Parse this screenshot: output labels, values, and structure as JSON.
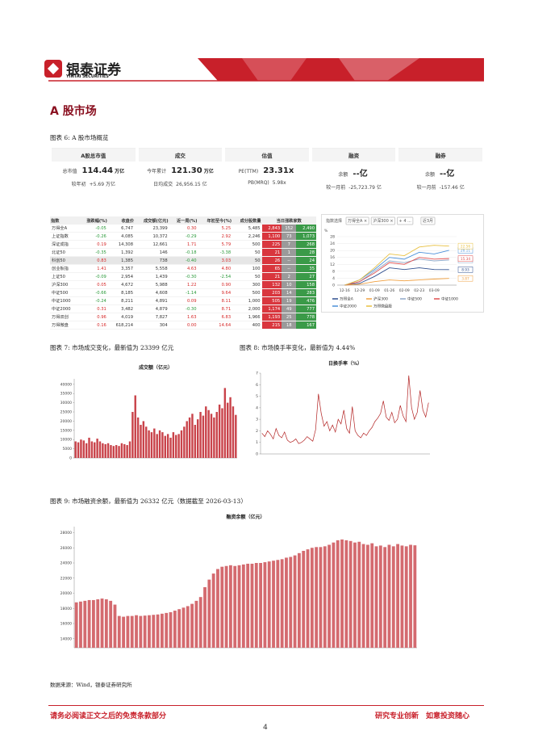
{
  "header": {
    "logo_cn": "银泰证券",
    "logo_en": "YINTAI SECURITIES"
  },
  "section_title": "A 股市场",
  "figure6": {
    "caption": "图表 6: A 股市场概览",
    "cards": [
      {
        "title": "A股总市值",
        "rows": [
          [
            "总市值",
            "114.44",
            "万亿"
          ],
          [
            "较年初",
            "+5.69 万亿"
          ]
        ]
      },
      {
        "title": "成交",
        "rows": [
          [
            "今年累计",
            "121.30",
            "万亿"
          ],
          [
            "日均成交",
            "26,956.15 亿"
          ]
        ]
      },
      {
        "title": "估值",
        "rows": [
          [
            "PE(TTM)",
            "23.31x"
          ],
          [
            "PB(MRQ)",
            "5.98x"
          ]
        ]
      },
      {
        "title": "融资",
        "rows": [
          [
            "余额",
            "--亿"
          ],
          [
            "较一月前",
            "-25,723.79 亿"
          ]
        ]
      },
      {
        "title": "融券",
        "rows": [
          [
            "余额",
            "--亿"
          ],
          [
            "较一月前",
            "-157.46 亿"
          ]
        ]
      }
    ],
    "table": {
      "header": [
        "指数",
        "涨跌幅(%)",
        "收盘价",
        "成交额(亿元)",
        "近一周(%)",
        "年初至今(%)",
        "成分股数量",
        "当日涨跌家数"
      ],
      "rows": [
        [
          "万得全A",
          "-0.05",
          "6,747",
          "23,399",
          "0.30",
          "5.25",
          "5,485",
          "2,843",
          "152",
          "2,490"
        ],
        [
          "上证指数",
          "-0.26",
          "4,085",
          "10,372",
          "-0.29",
          "2.92",
          "2,246",
          "1,100",
          "73",
          "1,073"
        ],
        [
          "深证成指",
          "0.19",
          "14,308",
          "12,661",
          "1.71",
          "5.79",
          "500",
          "225",
          "7",
          "268"
        ],
        [
          "北证50",
          "-0.35",
          "1,392",
          "146",
          "-0.18",
          "-3.38",
          "50",
          "21",
          "1",
          "28"
        ],
        [
          "科创50",
          "0.83",
          "1,385",
          "738",
          "-0.40",
          "3.03",
          "50",
          "26",
          "--",
          "24"
        ],
        [
          "创业板指",
          "1.41",
          "3,357",
          "5,558",
          "4.63",
          "4.80",
          "100",
          "65",
          "--",
          "35"
        ],
        [
          "上证50",
          "-0.09",
          "2,954",
          "1,439",
          "-0.30",
          "-2.54",
          "50",
          "21",
          "2",
          "27"
        ],
        [
          "沪深300",
          "0.05",
          "4,672",
          "5,988",
          "1.22",
          "0.90",
          "300",
          "132",
          "10",
          "158"
        ],
        [
          "中证500",
          "-0.66",
          "8,185",
          "4,608",
          "-1.14",
          "9.64",
          "500",
          "203",
          "14",
          "283"
        ],
        [
          "中证1000",
          "-0.24",
          "8,211",
          "4,891",
          "0.09",
          "8.11",
          "1,000",
          "505",
          "19",
          "476"
        ],
        [
          "中证2000",
          "0.31",
          "3,482",
          "4,879",
          "-0.30",
          "8.71",
          "2,000",
          "1,174",
          "49",
          "777"
        ],
        [
          "万得双创",
          "0.96",
          "4,019",
          "7,827",
          "1.63",
          "6.83",
          "1,966",
          "1,193",
          "25",
          "778"
        ],
        [
          "万得微盘",
          "0.16",
          "618,214",
          "304",
          "0.00",
          "14.64",
          "400",
          "215",
          "18",
          "167"
        ]
      ]
    }
  },
  "figure7": {
    "caption": "图表 7: 市场成交变化，最新值为 23399 亿元"
  },
  "figure8": {
    "caption": "图表 8: 市场换手率变化，最新值为 4.44%"
  },
  "figure9": {
    "caption": "图表 9: 市场融资余额，最新值为 26332 亿元（数据截至 2026-03-13）"
  },
  "source": "数据来源：Wind，银泰证券研究所",
  "footer": {
    "left": "请务必阅读正文之后的免责条款部分",
    "right": "研究专业创新　如意投资随心",
    "page": "4"
  },
  "chart_data": [
    {
      "type": "line",
      "controls": [
        "指数选择",
        "万得全A ×",
        "沪深300 ×",
        "+ 4 ...",
        "近3月"
      ],
      "y_unit": "%",
      "categories": [
        "12-16",
        "12-29",
        "01-09",
        "01-26",
        "02-09",
        "02-23",
        "03-09",
        null
      ],
      "series": [
        {
          "name": "万得全A",
          "color": "#2f4f8f",
          "values": [
            0,
            1,
            5,
            10,
            9,
            10,
            9,
            8.93
          ]
        },
        {
          "name": "沪深300",
          "color": "#f0a040",
          "values": [
            0,
            0.5,
            2,
            3,
            2.5,
            3,
            3.5,
            3.87
          ]
        },
        {
          "name": "中证500",
          "color": "#8fa8c8",
          "values": [
            0,
            2,
            8,
            14,
            13,
            15,
            14,
            14.51
          ]
        },
        {
          "name": "中证1000",
          "color": "#e05050",
          "values": [
            0,
            2,
            7,
            13,
            12,
            16,
            15,
            15.34
          ]
        },
        {
          "name": "中证2000",
          "color": "#4a90d9",
          "values": [
            0,
            3,
            9,
            16,
            15,
            19,
            18,
            20.11
          ]
        },
        {
          "name": "万得微盘股",
          "color": "#e8c040",
          "values": [
            0,
            3,
            10,
            18,
            17,
            22,
            23,
            22.56
          ]
        }
      ],
      "ylim": [
        0,
        28
      ],
      "yticks": [
        0,
        4,
        8,
        12,
        16,
        20,
        24,
        28
      ],
      "grid": true,
      "legend": "bottom",
      "end_labels": true
    },
    {
      "type": "bar",
      "title": "成交额（亿元）",
      "color": "#c9434a",
      "values": [
        9000,
        8500,
        10000,
        9500,
        8000,
        11000,
        9000,
        8500,
        10500,
        9000,
        8000,
        7500,
        8000,
        7000,
        6500,
        7000,
        6500,
        8000,
        7500,
        7000,
        9000,
        25000,
        34000,
        22000,
        18000,
        20000,
        17000,
        15000,
        14000,
        16000,
        13000,
        15000,
        14000,
        12000,
        13000,
        11000,
        14000,
        12500,
        13000,
        15000,
        17000,
        20000,
        22000,
        24000,
        18000,
        21000,
        25000,
        23000,
        28000,
        26000,
        24000,
        22000,
        25000,
        29000,
        27000,
        38000,
        30000,
        33000,
        28000,
        23399
      ],
      "ylim": [
        0,
        43000
      ],
      "yticks": [
        0,
        5000,
        10000,
        15000,
        20000,
        25000,
        30000,
        35000,
        40000
      ],
      "grid": false
    },
    {
      "type": "line",
      "title": "日换手率（%）",
      "color": "#b22222",
      "values": [
        1.8,
        1.5,
        2.0,
        1.7,
        1.3,
        2.2,
        1.6,
        1.4,
        1.9,
        1.2,
        1.0,
        1.1,
        1.3,
        0.9,
        1.0,
        1.2,
        1.5,
        1.3,
        1.1,
        2.1,
        5.2,
        3.5,
        2.4,
        2.8,
        2.0,
        2.5,
        1.9,
        3.0,
        2.6,
        3.8,
        2.2,
        1.8,
        4.1,
        2.0,
        1.6,
        1.4,
        1.8,
        1.6,
        2.0,
        2.3,
        2.8,
        3.1,
        3.5,
        4.6,
        3.2,
        2.9,
        3.6,
        2.7,
        3.0,
        4.2,
        3.3,
        2.8,
        6.8,
        4.0,
        3.0,
        3.6,
        5.5,
        3.8,
        3.2,
        4.44
      ],
      "ylim": [
        0,
        7
      ],
      "yticks": [
        0,
        1,
        2,
        3,
        4,
        5,
        6,
        7
      ],
      "grid": false
    },
    {
      "type": "bar",
      "title": "融资余额（亿元）",
      "color": "#d46a6f",
      "values": [
        18800,
        18900,
        19000,
        19100,
        19100,
        19200,
        19300,
        19200,
        19000,
        18500,
        17000,
        16900,
        17000,
        17000,
        17100,
        17000,
        17050,
        17100,
        17150,
        17200,
        17300,
        17400,
        17500,
        17700,
        17900,
        18100,
        18300,
        18600,
        19000,
        19500,
        20800,
        21800,
        22600,
        23200,
        23500,
        23600,
        23700,
        23600,
        23700,
        23800,
        23900,
        23900,
        24000,
        24000,
        24100,
        24200,
        24300,
        24400,
        24500,
        24700,
        24800,
        25000,
        25300,
        25600,
        25800,
        26000,
        26100,
        26100,
        26200,
        26400,
        26700,
        27000,
        27100,
        27000,
        26900,
        26700,
        26800,
        26500,
        26400,
        26600,
        26200,
        26300,
        26100,
        26400,
        26200,
        26500,
        26300,
        26200,
        26400,
        26332
      ],
      "ylim": [
        12800,
        28800
      ],
      "yticks": [
        14000,
        16000,
        18000,
        20000,
        22000,
        24000,
        26000,
        28000
      ],
      "grid": false
    }
  ]
}
